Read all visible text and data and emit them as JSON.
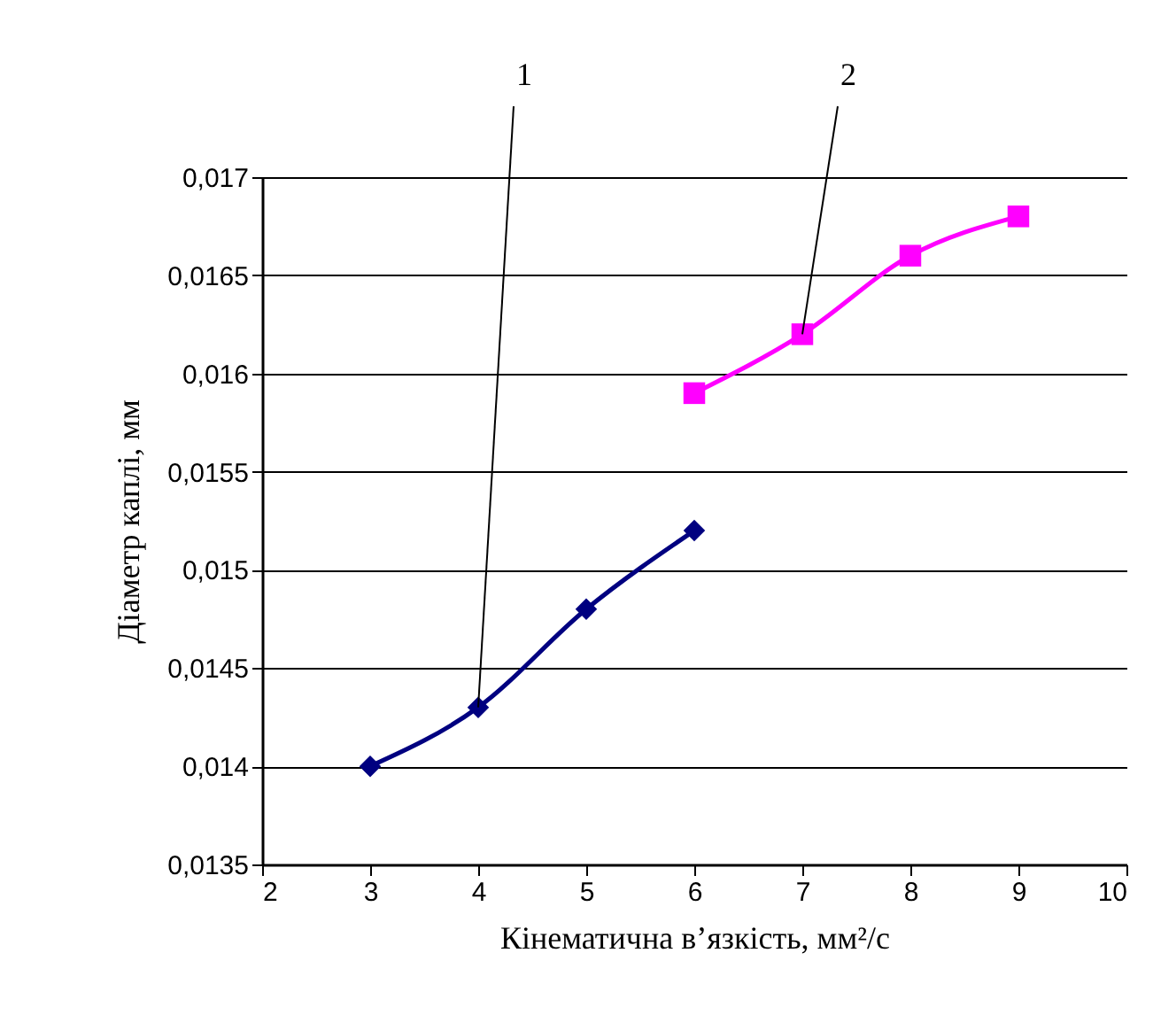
{
  "chart_data": {
    "type": "line",
    "xlabel": "Кінематична в’язкість, мм²/с",
    "ylabel": "Діаметр каплі, мм",
    "xlim": [
      2,
      10
    ],
    "xticks": [
      2,
      3,
      4,
      5,
      6,
      7,
      8,
      9,
      10
    ],
    "ylim": [
      0.0135,
      0.017
    ],
    "yticks": [
      {
        "value": 0.0135,
        "label": "0,0135"
      },
      {
        "value": 0.014,
        "label": "0,014"
      },
      {
        "value": 0.0145,
        "label": "0,0145"
      },
      {
        "value": 0.015,
        "label": "0,015"
      },
      {
        "value": 0.0155,
        "label": "0,0155"
      },
      {
        "value": 0.016,
        "label": "0,016"
      },
      {
        "value": 0.0165,
        "label": "0,0165"
      },
      {
        "value": 0.017,
        "label": "0,017"
      }
    ],
    "grid": "y",
    "line_style": "solid",
    "series": [
      {
        "color": "#000080",
        "marker": "diamond",
        "x": [
          3,
          4,
          5,
          6
        ],
        "values": [
          0.014,
          0.0143,
          0.0148,
          0.0152
        ]
      },
      {
        "color": "#ff00ff",
        "marker": "square",
        "x": [
          6,
          7,
          8,
          9
        ],
        "values": [
          0.0159,
          0.0162,
          0.0166,
          0.0168
        ]
      }
    ],
    "annotations": [
      {
        "text": "1",
        "x": 4,
        "y": 0.0143
      },
      {
        "text": "2",
        "x": 7,
        "y": 0.0162
      }
    ]
  }
}
